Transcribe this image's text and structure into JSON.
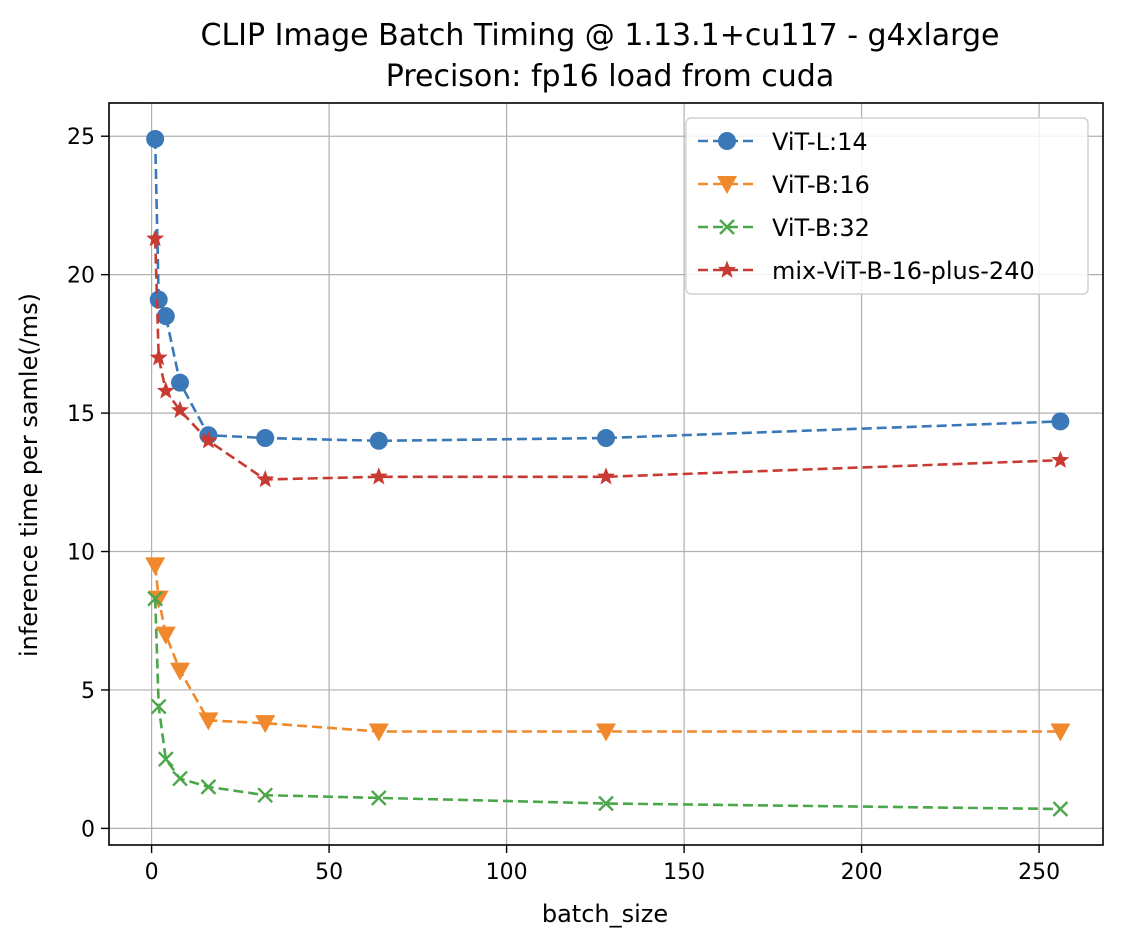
{
  "chart_data": {
    "type": "line",
    "title": "CLIP Image Batch Timing @ 1.13.1+cu117 - g4xlarge",
    "subtitle": "Precison: fp16 load from cuda",
    "xlabel": "batch_size",
    "ylabel": "inference time per samle(/ms)",
    "xlim": [
      -12,
      268
    ],
    "ylim": [
      -0.6,
      26.2
    ],
    "xticks": [
      0,
      50,
      100,
      150,
      200,
      250
    ],
    "yticks": [
      0,
      5,
      10,
      15,
      20,
      25
    ],
    "grid": true,
    "legend_position": "top-right",
    "x": [
      1,
      2,
      4,
      8,
      16,
      32,
      64,
      128,
      256
    ],
    "series": [
      {
        "name": "ViT-L:14",
        "color": "#3b78b8",
        "marker": "circle",
        "values": [
          24.9,
          19.1,
          18.5,
          16.1,
          14.2,
          14.1,
          14.0,
          14.1,
          14.7
        ]
      },
      {
        "name": "ViT-B:16",
        "color": "#f0892c",
        "marker": "triangle-down",
        "values": [
          9.5,
          8.3,
          7.0,
          5.7,
          3.9,
          3.8,
          3.5,
          3.5,
          3.5
        ]
      },
      {
        "name": "ViT-B:32",
        "color": "#4ca64a",
        "marker": "x",
        "values": [
          8.3,
          4.4,
          2.5,
          1.8,
          1.5,
          1.2,
          1.1,
          0.9,
          0.7
        ]
      },
      {
        "name": "mix-ViT-B-16-plus-240",
        "color": "#c83a32",
        "marker": "star",
        "values": [
          21.3,
          17.0,
          15.8,
          15.1,
          14.0,
          12.6,
          12.7,
          12.7,
          13.3
        ]
      }
    ]
  }
}
